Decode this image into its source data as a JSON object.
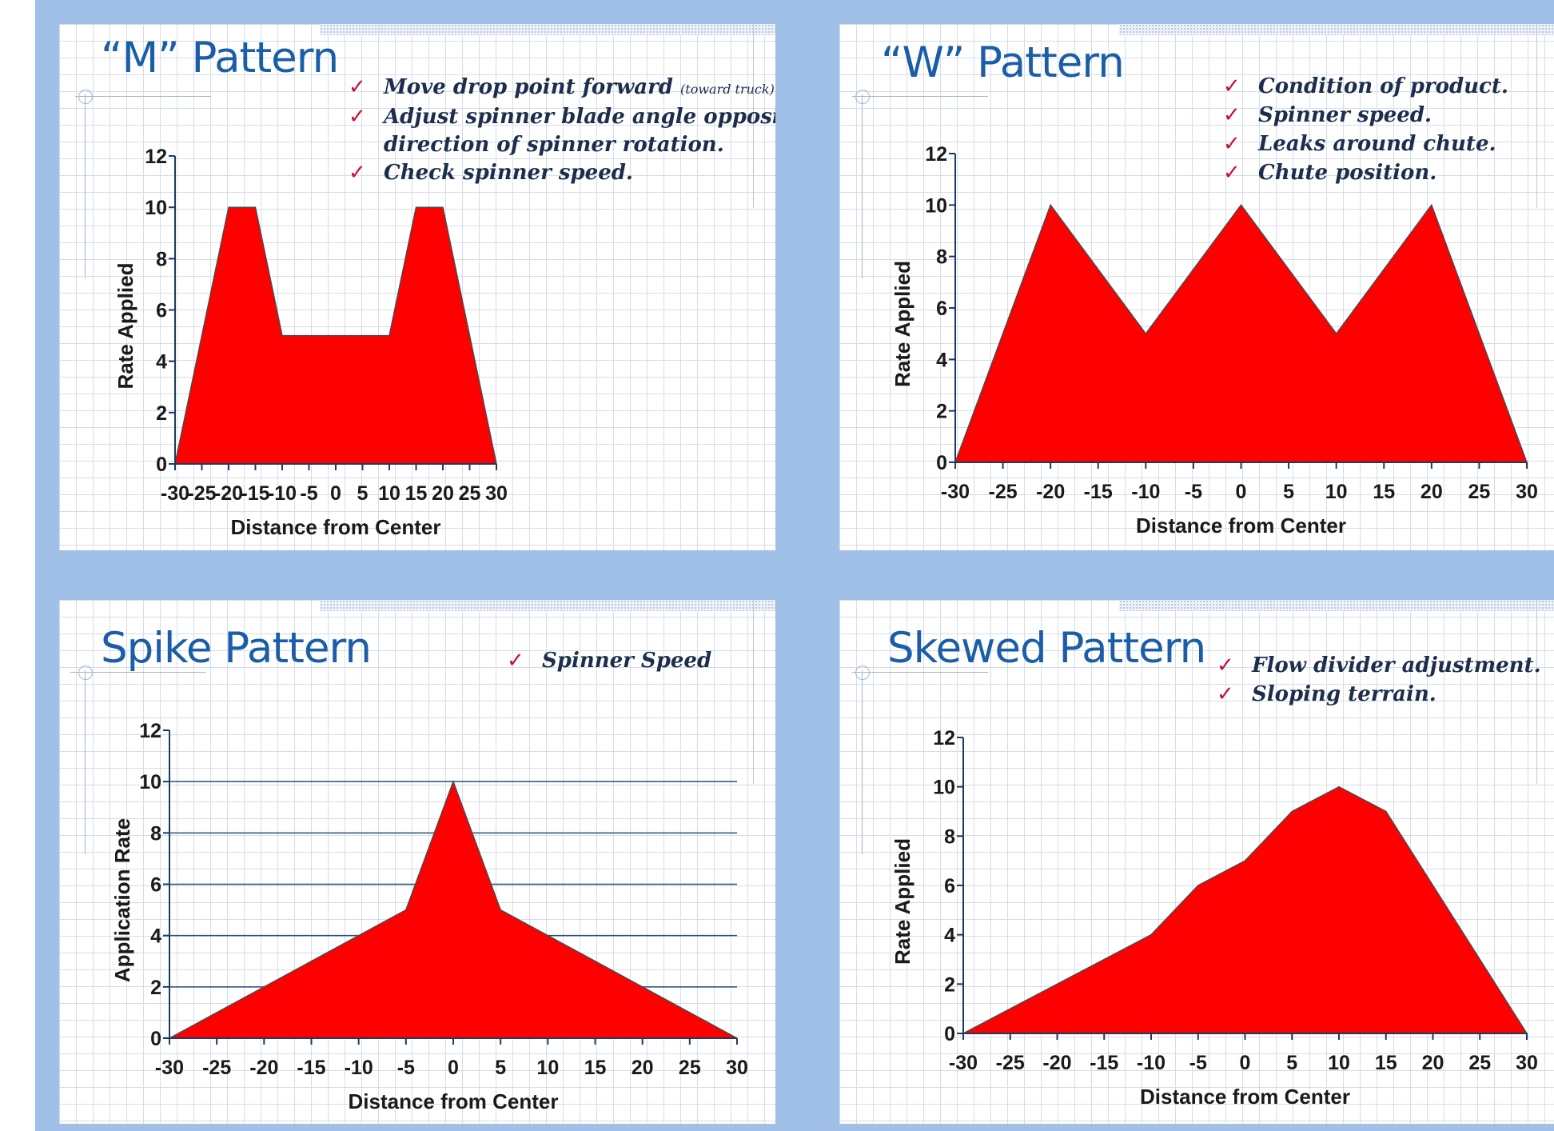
{
  "colors": {
    "background": "#a0c0e8",
    "title": "#1a5ea8",
    "note_text": "#1c2e4c",
    "check": "#c8102e",
    "fill": "#ff0000",
    "axis": "#1a3b64"
  },
  "icons": {
    "check": "check-mark-icon"
  },
  "panels": [
    {
      "id": "m",
      "title": "“M” Pattern",
      "notes": [
        {
          "check": true,
          "text": "Move drop point forward",
          "small": "(toward truck)."
        },
        {
          "check": true,
          "text": "Adjust spinner blade angle opposite",
          "small": ""
        },
        {
          "check": false,
          "text": "direction of spinner rotation.",
          "small": ""
        },
        {
          "check": true,
          "text": "Check spinner speed.",
          "small": ""
        }
      ]
    },
    {
      "id": "w",
      "title": "“W” Pattern",
      "notes": [
        {
          "check": true,
          "text": "Condition of product.",
          "small": ""
        },
        {
          "check": true,
          "text": "Spinner speed.",
          "small": ""
        },
        {
          "check": true,
          "text": "Leaks around chute.",
          "small": ""
        },
        {
          "check": true,
          "text": "Chute position.",
          "small": ""
        }
      ]
    },
    {
      "id": "spike",
      "title": "Spike Pattern",
      "notes": [
        {
          "check": true,
          "text": "Spinner Speed",
          "small": ""
        }
      ]
    },
    {
      "id": "skewed",
      "title": "Skewed Pattern",
      "notes": [
        {
          "check": true,
          "text": "Flow divider adjustment.",
          "small": ""
        },
        {
          "check": true,
          "text": "Sloping terrain.",
          "small": ""
        }
      ]
    }
  ],
  "chart_data": [
    {
      "type": "area",
      "title": "“M” Pattern",
      "xlabel": "Distance from Center",
      "ylabel": "Rate Applied",
      "x": [
        -30,
        -20,
        -15,
        -10,
        10,
        15,
        20,
        30
      ],
      "y": [
        0,
        10,
        10,
        5,
        5,
        10,
        10,
        0
      ],
      "xlim": [
        -30,
        30
      ],
      "ylim": [
        0,
        12
      ],
      "xticks": [
        -30,
        -25,
        -20,
        -15,
        -10,
        -5,
        0,
        5,
        10,
        15,
        20,
        25,
        30
      ],
      "yticks": [
        0,
        2,
        4,
        6,
        8,
        10,
        12
      ],
      "grid": false
    },
    {
      "type": "area",
      "title": "“W” Pattern",
      "xlabel": "Distance from Center",
      "ylabel": "Rate Applied",
      "x": [
        -30,
        -20,
        -10,
        0,
        10,
        20,
        30
      ],
      "y": [
        0,
        10,
        5,
        10,
        5,
        10,
        0
      ],
      "xlim": [
        -30,
        30
      ],
      "ylim": [
        0,
        12
      ],
      "xticks": [
        -30,
        -25,
        -20,
        -15,
        -10,
        -5,
        0,
        5,
        10,
        15,
        20,
        25,
        30
      ],
      "yticks": [
        0,
        2,
        4,
        6,
        8,
        10,
        12
      ],
      "grid": false
    },
    {
      "type": "area",
      "title": "Spike Pattern",
      "xlabel": "Distance from Center",
      "ylabel": "Application Rate",
      "x": [
        -30,
        -5,
        0,
        5,
        30
      ],
      "y": [
        0,
        5,
        10,
        5,
        0
      ],
      "xlim": [
        -30,
        30
      ],
      "ylim": [
        0,
        12
      ],
      "xticks": [
        -30,
        -25,
        -20,
        -15,
        -10,
        -5,
        0,
        5,
        10,
        15,
        20,
        25,
        30
      ],
      "yticks": [
        0,
        2,
        4,
        6,
        8,
        10,
        12
      ],
      "grid": true
    },
    {
      "type": "area",
      "title": "Skewed Pattern",
      "xlabel": "Distance from Center",
      "ylabel": "Rate Applied",
      "x": [
        -30,
        -20,
        -10,
        -5,
        0,
        5,
        10,
        15,
        30
      ],
      "y": [
        0,
        2,
        4,
        6,
        7,
        9,
        10,
        9,
        0
      ],
      "xlim": [
        -30,
        30
      ],
      "ylim": [
        0,
        12
      ],
      "xticks": [
        -30,
        -25,
        -20,
        -15,
        -10,
        -5,
        0,
        5,
        10,
        15,
        20,
        25,
        30
      ],
      "yticks": [
        0,
        2,
        4,
        6,
        8,
        10,
        12
      ],
      "grid": false
    }
  ]
}
